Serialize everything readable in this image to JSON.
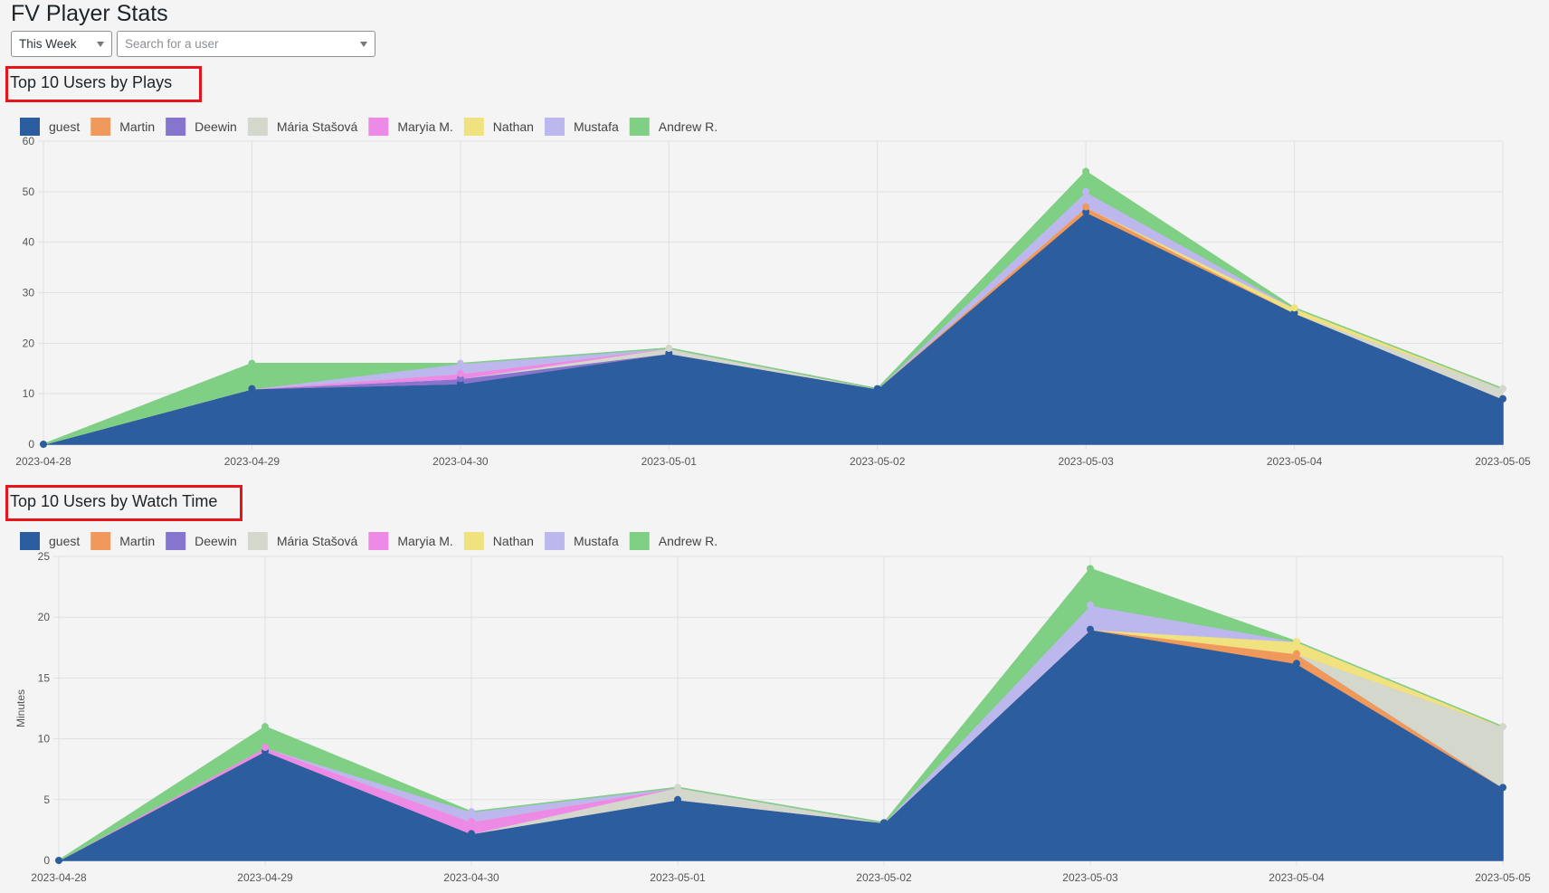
{
  "page_title": "FV Player Stats",
  "filters": {
    "period_value": "This Week",
    "user_placeholder": "Search for a user"
  },
  "series_colors": {
    "guest": "#2c5d9f",
    "Martin": "#f0995a",
    "Deewin": "#8675cf",
    "Mária Stašová": "#d4d8cc",
    "Maryia M.": "#ec8ae6",
    "Nathan": "#f0e27f",
    "Mustafa": "#bcb8ee",
    "Andrew R.": "#7fcf84"
  },
  "chart_data": [
    {
      "type": "area",
      "stacked": true,
      "title": "Top 10 Users by Plays",
      "xlabel": "",
      "ylabel": "",
      "x": [
        "2023-04-28",
        "2023-04-29",
        "2023-04-30",
        "2023-05-01",
        "2023-05-02",
        "2023-05-03",
        "2023-05-04",
        "2023-05-05"
      ],
      "ylim": [
        0,
        60
      ],
      "yticks": [
        0,
        10,
        20,
        30,
        40,
        50,
        60
      ],
      "grid": true,
      "legend": "top-left",
      "series": [
        {
          "name": "guest",
          "values": [
            0,
            11,
            12,
            18,
            11,
            46,
            26,
            9
          ]
        },
        {
          "name": "Martin",
          "values": [
            0,
            0,
            0,
            0,
            0,
            1,
            0,
            0
          ]
        },
        {
          "name": "Deewin",
          "values": [
            0,
            0,
            1,
            0,
            0,
            0,
            0,
            0
          ]
        },
        {
          "name": "Mária Stašová",
          "values": [
            0,
            0,
            0,
            1,
            0,
            0,
            0,
            2
          ]
        },
        {
          "name": "Maryia M.",
          "values": [
            0,
            0,
            1,
            0,
            0,
            0,
            0,
            0
          ]
        },
        {
          "name": "Nathan",
          "values": [
            0,
            0,
            0,
            0,
            0,
            0,
            1,
            0
          ]
        },
        {
          "name": "Mustafa",
          "values": [
            0,
            0,
            2,
            0,
            0,
            3,
            0,
            0
          ]
        },
        {
          "name": "Andrew R.",
          "values": [
            0,
            5,
            0,
            0,
            0,
            4,
            0,
            0
          ]
        }
      ]
    },
    {
      "type": "area",
      "stacked": true,
      "title": "Top 10 Users by Watch Time",
      "xlabel": "",
      "ylabel": "Minutes",
      "x": [
        "2023-04-28",
        "2023-04-29",
        "2023-04-30",
        "2023-05-01",
        "2023-05-02",
        "2023-05-03",
        "2023-05-04",
        "2023-05-05"
      ],
      "ylim": [
        0,
        25
      ],
      "yticks": [
        0,
        5,
        10,
        15,
        20,
        25
      ],
      "grid": true,
      "legend": "top-left",
      "series": [
        {
          "name": "guest",
          "values": [
            0,
            9,
            2.2,
            5,
            3.1,
            19,
            16.2,
            6
          ]
        },
        {
          "name": "Martin",
          "values": [
            0,
            0,
            0,
            0,
            0,
            0,
            0.8,
            0
          ]
        },
        {
          "name": "Deewin",
          "values": [
            0,
            0,
            0,
            0,
            0,
            0,
            0,
            0
          ]
        },
        {
          "name": "Mária Stašová",
          "values": [
            0,
            0,
            0,
            1,
            0,
            0,
            0,
            5
          ]
        },
        {
          "name": "Maryia M.",
          "values": [
            0,
            0.3,
            1,
            0,
            0,
            0,
            0,
            0
          ]
        },
        {
          "name": "Nathan",
          "values": [
            0,
            0,
            0,
            0,
            0,
            0,
            1,
            0
          ]
        },
        {
          "name": "Mustafa",
          "values": [
            0,
            0,
            0.8,
            0,
            0,
            2,
            0,
            0
          ]
        },
        {
          "name": "Andrew R.",
          "values": [
            0,
            1.7,
            0,
            0,
            0,
            3,
            0,
            0
          ]
        }
      ]
    }
  ]
}
